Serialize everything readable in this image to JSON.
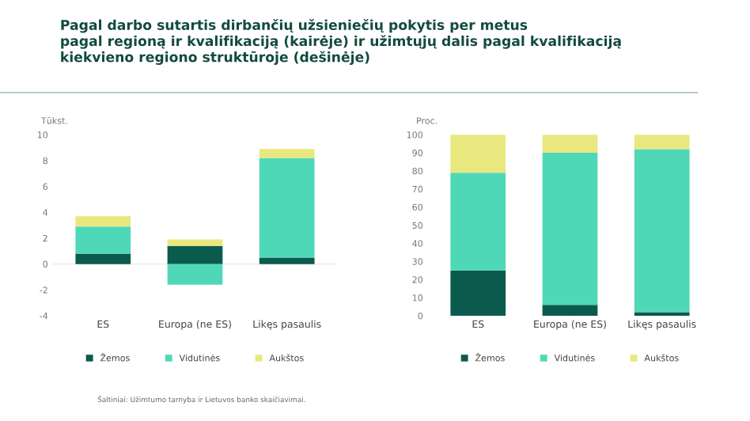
{
  "chart_data": [
    {
      "type": "bar",
      "stacked": true,
      "title": "Pagal darbo sutartis dirbančių užsieniečių pokytis per metus\npagal regioną ir kvalifikaciją (kairėje) ir užimtųjų dalis pagal kvalifikaciją\nkiekvieno regiono struktūroje (dešinėje)",
      "ylabel": "Tūkst.",
      "categories": [
        "ES",
        "Europa (ne ES)",
        "Likęs pasaulis"
      ],
      "series": [
        {
          "name": "Žemos",
          "color": "#0b5a4e",
          "values": [
            0.8,
            1.4,
            0.5
          ]
        },
        {
          "name": "Vidutinės",
          "color": "#4fd8b8",
          "values": [
            2.1,
            -1.6,
            7.7
          ]
        },
        {
          "name": "Aukštos",
          "color": "#e8e87e",
          "values": [
            0.8,
            0.5,
            0.7
          ]
        }
      ],
      "ylim": [
        -4,
        10
      ],
      "yticks": [
        -4,
        -2,
        0,
        2,
        4,
        6,
        8,
        10
      ],
      "grid": false,
      "legend": "bottom",
      "ref_lines": [
        {
          "axis": "y",
          "value": 0,
          "color": "#eeeeee"
        }
      ],
      "annotations": [
        "Šaltiniai: Užimtumo tarnyba ir Lietuvos banko skaičiavimai."
      ]
    },
    {
      "type": "bar",
      "stacked": true,
      "ylabel": "Proc.",
      "categories": [
        "ES",
        "Europa (ne ES)",
        "Likęs pasaulis"
      ],
      "series": [
        {
          "name": "Žemos",
          "color": "#0b5a4e",
          "values": [
            25,
            6,
            2
          ]
        },
        {
          "name": "Vidutinės",
          "color": "#4fd8b8",
          "values": [
            54,
            84,
            90
          ]
        },
        {
          "name": "Aukštos",
          "color": "#e8e87e",
          "values": [
            21,
            10,
            8
          ]
        }
      ],
      "ylim": [
        0,
        100
      ],
      "yticks": [
        0,
        10,
        20,
        30,
        40,
        50,
        60,
        70,
        80,
        90,
        100
      ],
      "grid": false,
      "legend": "bottom"
    }
  ]
}
